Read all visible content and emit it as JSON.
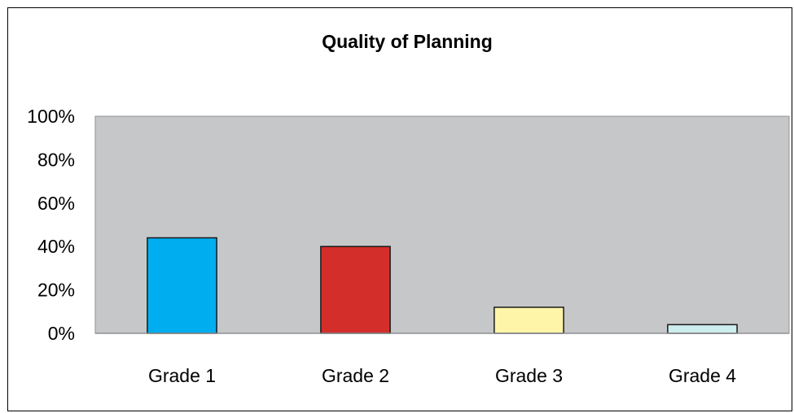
{
  "chart_data": {
    "type": "bar",
    "title": "Quality of Planning",
    "xlabel": "",
    "ylabel": "",
    "categories": [
      "Grade 1",
      "Grade 2",
      "Grade 3",
      "Grade 4"
    ],
    "values": [
      44,
      40,
      12,
      4
    ],
    "bar_colors": [
      "#00aeef",
      "#d42e2a",
      "#fff5a8",
      "#cdeeee"
    ],
    "plot_background": "#c6c7c9",
    "ylim": [
      0,
      100
    ],
    "yticks": [
      0,
      20,
      40,
      60,
      80,
      100
    ],
    "ytick_labels": [
      "0%",
      "20%",
      "40%",
      "60%",
      "80%",
      "100%"
    ],
    "grid": false,
    "legend": "none"
  }
}
